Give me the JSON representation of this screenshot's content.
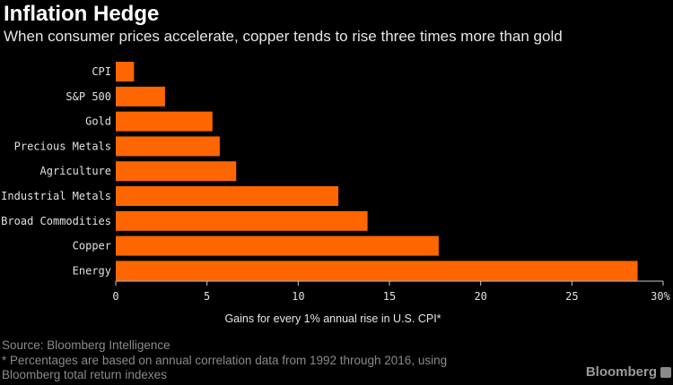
{
  "header": {
    "title": "Inflation Hedge",
    "subtitle": "When consumer prices accelerate, copper tends to rise three times more than gold"
  },
  "chart_data": {
    "type": "bar",
    "orientation": "horizontal",
    "title": "Inflation Hedge",
    "subtitle": "When consumer prices accelerate, copper tends to rise three times more than gold",
    "categories": [
      "CPI",
      "S&P 500",
      "Gold",
      "Precious Metals",
      "Agriculture",
      "Industrial Metals",
      "Broad Commodities",
      "Copper",
      "Energy"
    ],
    "values": [
      1.0,
      2.7,
      5.3,
      5.7,
      6.6,
      12.2,
      13.8,
      17.7,
      28.6
    ],
    "xlabel": "Gains for every 1% annual rise in U.S. CPI*",
    "ylabel": "",
    "xlim": [
      0,
      30
    ],
    "xticks": [
      {
        "value": 0,
        "label": "0"
      },
      {
        "value": 5,
        "label": "5"
      },
      {
        "value": 10,
        "label": "10"
      },
      {
        "value": 15,
        "label": "15"
      },
      {
        "value": 20,
        "label": "20"
      },
      {
        "value": 25,
        "label": "25"
      },
      {
        "value": 30,
        "label": "30%"
      }
    ],
    "bar_color": "#FF6600",
    "background": "#000000",
    "grid": false
  },
  "footer": {
    "source": "Source: Bloomberg Intelligence",
    "note_line1": "* Percentages are based on annual correlation data from 1992 through 2016, using",
    "note_line2": "Bloomberg total return indexes",
    "brand": "Bloomberg"
  }
}
